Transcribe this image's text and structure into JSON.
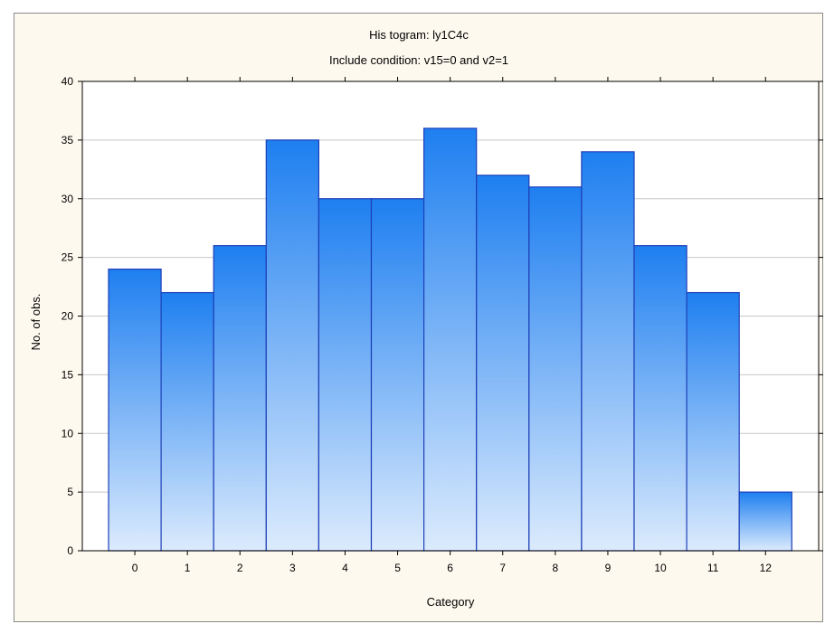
{
  "chart_data": {
    "type": "bar",
    "title": "His togram: ly1C4c",
    "subtitle": "Include condition: v15=0 and v2=1",
    "xlabel": "Category",
    "ylabel": "No. of obs.",
    "categories": [
      "0",
      "1",
      "2",
      "3",
      "4",
      "5",
      "6",
      "7",
      "8",
      "9",
      "10",
      "11",
      "12"
    ],
    "values": [
      24,
      22,
      26,
      35,
      30,
      30,
      36,
      32,
      31,
      34,
      26,
      22,
      5
    ],
    "ylim": [
      0,
      40
    ],
    "yticks": [
      "0",
      "5",
      "10",
      "15",
      "20",
      "25",
      "30",
      "35",
      "40"
    ],
    "grid": true,
    "legend": "none",
    "colors": {
      "bar_top": "#1e7ff0",
      "bar_bottom": "#dcebfd",
      "bar_stroke": "#1d3fb8",
      "plot_bg": "#ffffff",
      "frame_bg": "#fdf9ee",
      "grid": "#c8c8c8"
    }
  }
}
